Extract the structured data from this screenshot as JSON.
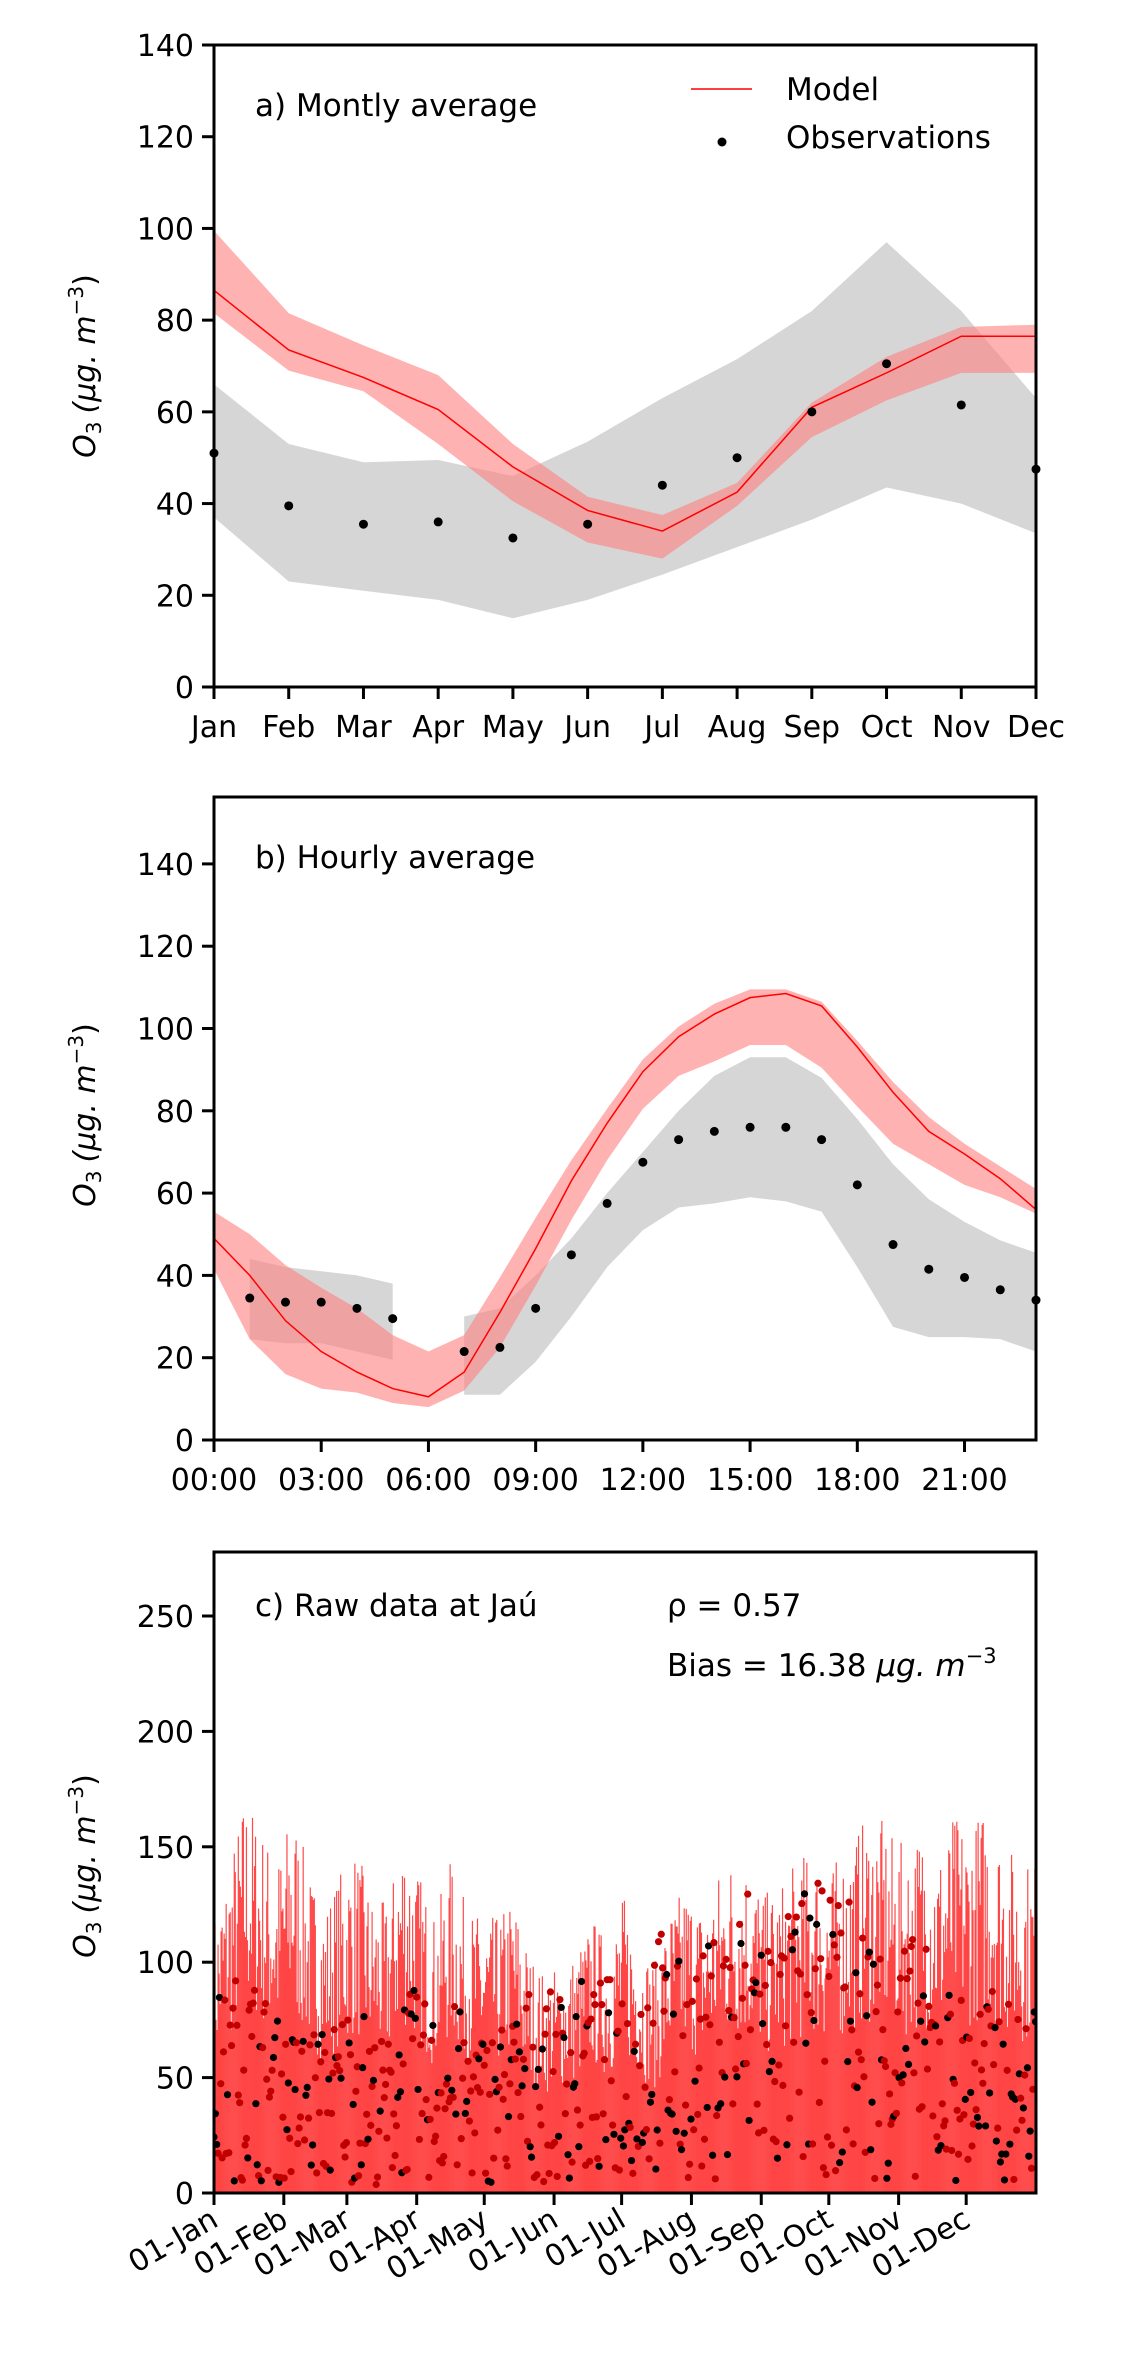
{
  "colors": {
    "model": "#ff0000",
    "model_band": "#ff7f7f",
    "obs": "#000000",
    "obs_band": "#c8c8c8",
    "raw_model": "#ff2a2a",
    "raw_obs_overlap": "#c00000"
  },
  "chart_data": [
    {
      "type": "line",
      "id": "a",
      "title": "a) Montly average",
      "ylabel_main": "O",
      "ylabel_sub": "3",
      "ylabel_unit": "(μg. m",
      "ylabel_exp": "−3",
      "ylabel_close": ")",
      "ylim": [
        0,
        140
      ],
      "yticks": [
        0,
        20,
        40,
        60,
        80,
        100,
        120,
        140
      ],
      "categories": [
        "Jan",
        "Feb",
        "Mar",
        "Apr",
        "May",
        "Jun",
        "Jul",
        "Aug",
        "Sep",
        "Oct",
        "Nov",
        "Dec"
      ],
      "legend": {
        "placement": "top-right",
        "entries": [
          {
            "label": "Model",
            "kind": "line"
          },
          {
            "label": "Observations",
            "kind": "dot"
          }
        ]
      },
      "series": [
        {
          "name": "Model",
          "values": [
            86.5,
            73.5,
            67.5,
            60.5,
            48,
            38.5,
            34,
            42.5,
            61,
            68.5,
            76.5,
            76.5
          ]
        },
        {
          "name": "Model band upper",
          "values": [
            99.5,
            81.5,
            74.5,
            68,
            53,
            41.5,
            37.5,
            44.5,
            62,
            72,
            78.5,
            79
          ]
        },
        {
          "name": "Model band lower",
          "values": [
            81.5,
            69,
            64.5,
            53,
            40.5,
            31.5,
            28,
            39.5,
            54.5,
            62.5,
            68.5,
            68.5
          ]
        },
        {
          "name": "Observations",
          "values": [
            51,
            39.5,
            35.5,
            36,
            32.5,
            35.5,
            44,
            50,
            60,
            70.5,
            61.5,
            47.5
          ]
        },
        {
          "name": "Obs band upper",
          "values": [
            66,
            53,
            49,
            49.5,
            46,
            53.5,
            63,
            71.5,
            82,
            97,
            82,
            63
          ]
        },
        {
          "name": "Obs band lower",
          "values": [
            37,
            23,
            21,
            19,
            15,
            19,
            24.5,
            30.5,
            36.5,
            43.5,
            40,
            33.5
          ]
        }
      ]
    },
    {
      "type": "line",
      "id": "b",
      "title": "b) Hourly average",
      "ylabel_main": "O",
      "ylabel_sub": "3",
      "ylabel_unit": "(μg. m",
      "ylabel_exp": "−3",
      "ylabel_close": ")",
      "ylim": [
        0,
        156
      ],
      "yticks": [
        0,
        20,
        40,
        60,
        80,
        100,
        120,
        140
      ],
      "xlim": [
        0,
        23
      ],
      "xticks": [
        0,
        3,
        6,
        9,
        12,
        15,
        18,
        21
      ],
      "xtick_labels": [
        "00:00",
        "03:00",
        "06:00",
        "09:00",
        "12:00",
        "15:00",
        "18:00",
        "21:00"
      ],
      "x": [
        0,
        1,
        2,
        3,
        4,
        5,
        6,
        7,
        8,
        9,
        10,
        11,
        12,
        13,
        14,
        15,
        16,
        17,
        18,
        19,
        20,
        21,
        22,
        23
      ],
      "series": [
        {
          "name": "Model",
          "values": [
            49,
            40,
            29,
            21.5,
            16.5,
            12.5,
            10.5,
            16.5,
            31,
            46.5,
            63,
            77,
            89.5,
            98,
            103.5,
            107.5,
            108.5,
            105.5,
            95.5,
            84.5,
            75,
            69.5,
            63.5,
            56
          ]
        },
        {
          "name": "Model band upper",
          "values": [
            55.5,
            50,
            42.5,
            37,
            32,
            25.5,
            21.5,
            25.5,
            39.5,
            54,
            68,
            80.5,
            92.5,
            100.5,
            106,
            109.5,
            109.5,
            106.5,
            97,
            87,
            78.5,
            72,
            66.5,
            61
          ]
        },
        {
          "name": "Model band lower",
          "values": [
            41.5,
            24.5,
            16,
            12.5,
            11.5,
            9,
            8,
            12,
            22.5,
            37.5,
            53.5,
            68,
            80.5,
            88.5,
            92,
            96,
            96,
            90.5,
            81,
            72,
            67,
            62,
            59,
            55
          ]
        },
        {
          "name": "Observations",
          "values": [
            null,
            34.5,
            33.5,
            33.5,
            32,
            29.5,
            null,
            21.5,
            22.5,
            32,
            45,
            57.5,
            67.5,
            73,
            75,
            76,
            76,
            73,
            62,
            47.5,
            41.5,
            39.5,
            36.5,
            34
          ]
        },
        {
          "name": "Obs band upper",
          "values": [
            null,
            44,
            42,
            41,
            40,
            38,
            null,
            30,
            32,
            40,
            49,
            60,
            70,
            80,
            88.5,
            93,
            93,
            88,
            78,
            67,
            58.5,
            53,
            48.5,
            45.5
          ]
        },
        {
          "name": "Obs band lower",
          "values": [
            null,
            24.5,
            23.5,
            23.5,
            21.5,
            19.5,
            null,
            11,
            11,
            19,
            30,
            42,
            51,
            56.5,
            57.5,
            59,
            58,
            55.5,
            42,
            27.5,
            25,
            25,
            24.5,
            21.5
          ]
        }
      ]
    },
    {
      "type": "line",
      "id": "c",
      "title": "c) Raw data at Jaú",
      "stat_rho": "ρ = 0.57",
      "stat_bias_prefix": "Bias = 16.38 ",
      "stat_bias_unit": "μg. m",
      "stat_bias_exp": "−3",
      "ylabel_main": "O",
      "ylabel_sub": "3",
      "ylabel_unit": "(μg. m",
      "ylabel_exp": "−3",
      "ylabel_close": ")",
      "ylim": [
        0,
        275
      ],
      "yticks": [
        0,
        50,
        100,
        150,
        200,
        250
      ],
      "xlim": [
        0,
        365
      ],
      "xticks": [
        0,
        31,
        59,
        90,
        120,
        151,
        181,
        212,
        243,
        273,
        304,
        334
      ],
      "xtick_labels": [
        "01-Jan",
        "01-Feb",
        "01-Mar",
        "01-Apr",
        "01-May",
        "01-Jun",
        "01-Jul",
        "01-Aug",
        "01-Sep",
        "01-Oct",
        "01-Nov",
        "01-Dec"
      ],
      "model_envelope_weekly": {
        "description": "approximate weekly maxima of hourly model series",
        "values": [
          120,
          145,
          175,
          160,
          145,
          170,
          140,
          125,
          140,
          150,
          130,
          125,
          160,
          140,
          120,
          145,
          125,
          120,
          120,
          130,
          105,
          95,
          100,
          105,
          120,
          110,
          130,
          110,
          100,
          125,
          135,
          125,
          140,
          150,
          145,
          130,
          135,
          145,
          150,
          140,
          150,
          160,
          165,
          155,
          150,
          160,
          150,
          165,
          160,
          170,
          155,
          145
        ]
      },
      "obs_envelope_weekly": {
        "description": "approximate weekly maxima of hourly observations",
        "values": [
          90,
          95,
          110,
          95,
          80,
          75,
          80,
          75,
          85,
          95,
          75,
          70,
          100,
          90,
          85,
          90,
          80,
          75,
          80,
          85,
          95,
          90,
          95,
          100,
          95,
          100,
          105,
          105,
          130,
          110,
          105,
          110,
          125,
          130,
          150,
          130,
          120,
          140,
          145,
          135,
          140,
          130,
          125,
          110,
          120,
          115,
          100,
          95,
          90,
          95,
          90,
          85
        ]
      }
    }
  ]
}
